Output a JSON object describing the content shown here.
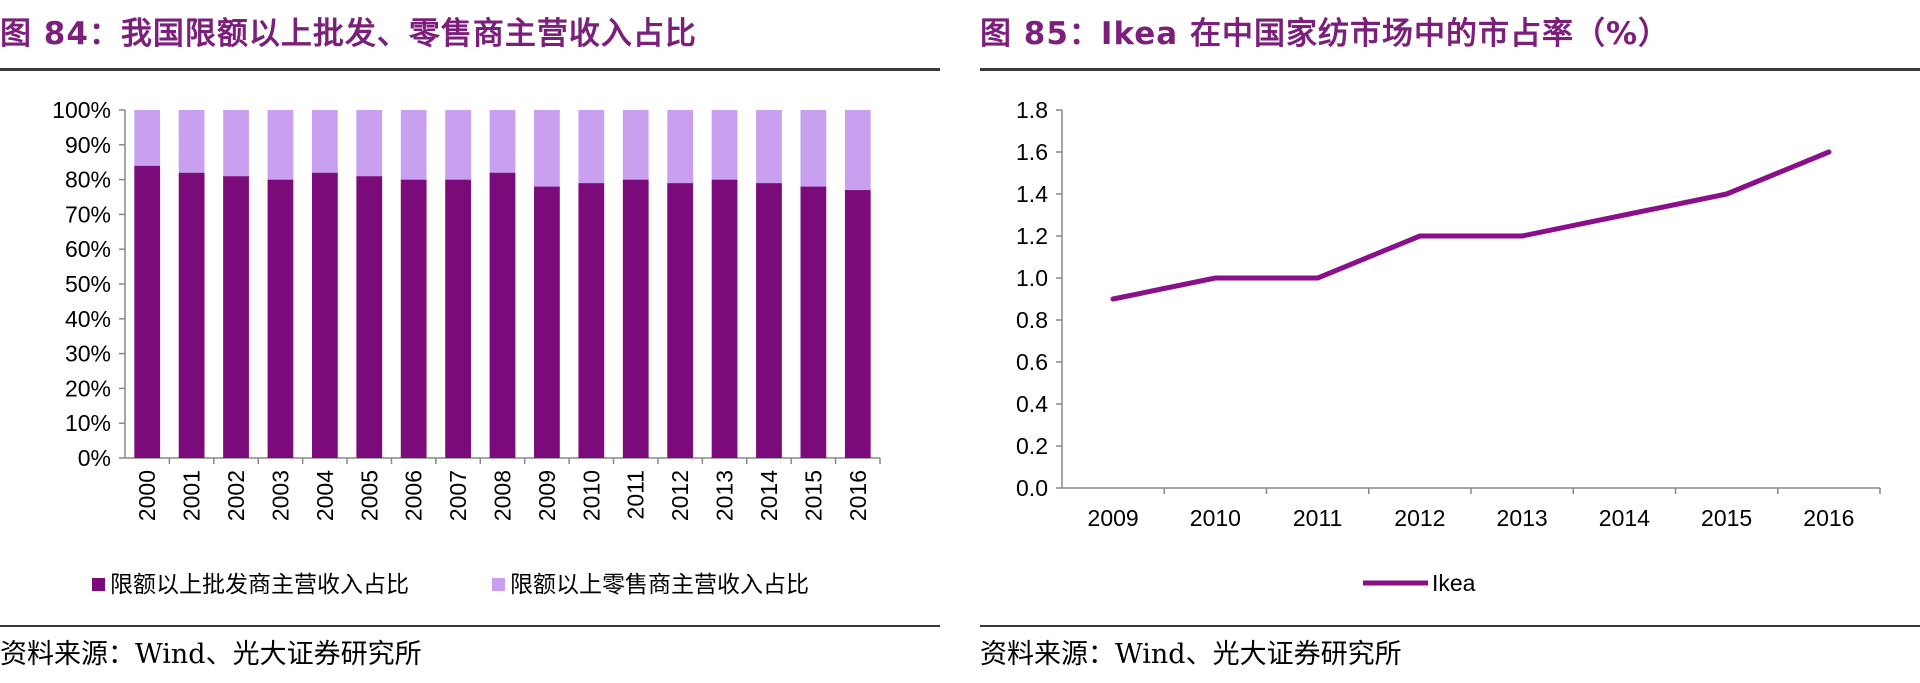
{
  "left": {
    "title": "图 84：我国限额以上批发、零售商主营收入占比",
    "source": "资料来源：Wind、光大证券研究所",
    "colors": {
      "wholesale": "#7b0a7b",
      "retail": "#c9a0f0"
    }
  },
  "right": {
    "title": "图 85：Ikea 在中国家纺市场中的市占率（%）",
    "source": "资料来源：Wind、光大证券研究所",
    "colors": {
      "line": "#8a0f8a"
    }
  },
  "chart_data": [
    {
      "type": "bar",
      "stacked": true,
      "percent_stacked": true,
      "categories": [
        "2000",
        "2001",
        "2002",
        "2003",
        "2004",
        "2005",
        "2006",
        "2007",
        "2008",
        "2009",
        "2010",
        "2011",
        "2012",
        "2013",
        "2014",
        "2015",
        "2016"
      ],
      "series": [
        {
          "name": "限额以上批发商主营收入占比",
          "values": [
            84,
            82,
            81,
            80,
            82,
            81,
            80,
            80,
            82,
            78,
            79,
            80,
            79,
            80,
            79,
            78,
            77
          ]
        },
        {
          "name": "限额以上零售商主营收入占比",
          "values": [
            16,
            18,
            19,
            20,
            18,
            19,
            20,
            20,
            18,
            22,
            21,
            20,
            21,
            20,
            21,
            22,
            23
          ]
        }
      ],
      "ylim": [
        0,
        100
      ],
      "yticks": [
        "0%",
        "10%",
        "20%",
        "30%",
        "40%",
        "50%",
        "60%",
        "70%",
        "80%",
        "90%",
        "100%"
      ],
      "grid": false,
      "legend_position": "bottom"
    },
    {
      "type": "line",
      "x": [
        "2009",
        "2010",
        "2011",
        "2012",
        "2013",
        "2014",
        "2015",
        "2016"
      ],
      "series": [
        {
          "name": "Ikea",
          "values": [
            0.9,
            1.0,
            1.0,
            1.2,
            1.2,
            1.3,
            1.4,
            1.6
          ]
        }
      ],
      "ylim": [
        0,
        1.8
      ],
      "yticks": [
        "0.0",
        "0.2",
        "0.4",
        "0.6",
        "0.8",
        "1.0",
        "1.2",
        "1.4",
        "1.6",
        "1.8"
      ],
      "grid": false,
      "legend_position": "bottom"
    }
  ]
}
